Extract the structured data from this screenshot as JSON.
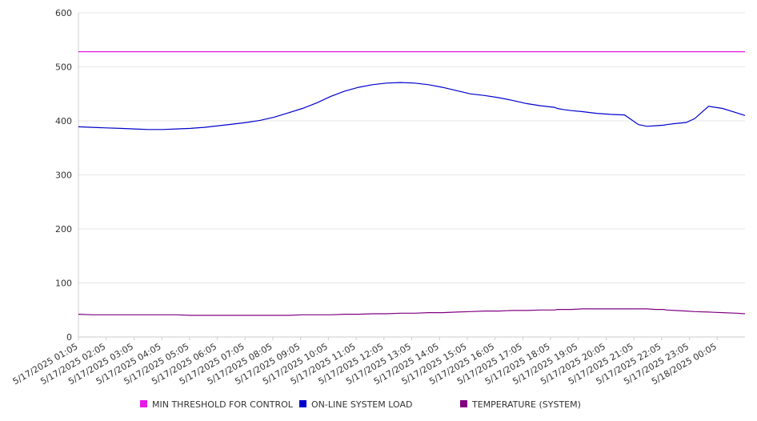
{
  "chart_data": {
    "type": "line",
    "ylim": [
      0,
      600
    ],
    "yticks": [
      0,
      100,
      200,
      300,
      400,
      500,
      600
    ],
    "grid": true,
    "legend_placement": "bottom",
    "x_tick_labels": [
      "5/17/2025 01:05",
      "5/17/2025 02:05",
      "5/17/2025 03:05",
      "5/17/2025 04:05",
      "5/17/2025 05:05",
      "5/17/2025 06:05",
      "5/17/2025 07:05",
      "5/17/2025 08:05",
      "5/17/2025 09:05",
      "5/17/2025 10:05",
      "5/17/2025 11:05",
      "5/17/2025 12:05",
      "5/17/2025 13:05",
      "5/17/2025 14:05",
      "5/17/2025 15:05",
      "5/17/2025 16:05",
      "5/17/2025 17:05",
      "5/17/2025 18:05",
      "5/17/2025 19:05",
      "5/17/2025 20:05",
      "5/17/2025 21:05",
      "5/17/2025 22:05",
      "5/17/2025 23:05",
      "5/18/2025 00:05"
    ],
    "x_hours": [
      0,
      0.5,
      1,
      1.5,
      2,
      2.5,
      3,
      3.5,
      4,
      4.5,
      5,
      5.5,
      6,
      6.5,
      7,
      7.5,
      8,
      8.5,
      9,
      9.5,
      10,
      10.5,
      11,
      11.5,
      12,
      12.5,
      13,
      13.5,
      14,
      14.5,
      15,
      15.5,
      16,
      16.5,
      17,
      17.1,
      17.3,
      17.6,
      18,
      18.5,
      19,
      19.5,
      20,
      20.3,
      20.6,
      20.9,
      21,
      21.3,
      21.7,
      22,
      22.5,
      23,
      23.5,
      23.8
    ],
    "series": [
      {
        "name": "MIN THRESHOLD FOR CONTROL",
        "color": "#e619e6",
        "values": [
          528,
          528,
          528,
          528,
          528,
          528,
          528,
          528,
          528,
          528,
          528,
          528,
          528,
          528,
          528,
          528,
          528,
          528,
          528,
          528,
          528,
          528,
          528,
          528,
          528,
          528,
          528,
          528,
          528,
          528,
          528,
          528,
          528,
          528,
          528,
          528,
          528,
          528,
          528,
          528,
          528,
          528,
          528,
          528,
          528,
          528,
          528,
          528,
          528,
          528,
          528,
          528,
          528,
          528
        ]
      },
      {
        "name": "ON-LINE SYSTEM LOAD",
        "color": "#0000cc",
        "values": [
          389,
          388,
          387,
          386,
          385,
          384,
          384,
          385,
          386,
          388,
          391,
          394,
          397,
          401,
          407,
          415,
          423,
          433,
          445,
          455,
          462,
          467,
          470,
          471,
          470,
          467,
          462,
          456,
          450,
          447,
          443,
          438,
          432,
          428,
          425,
          423,
          421,
          419,
          417,
          414,
          412,
          411,
          393,
          390,
          391,
          392,
          393,
          395,
          397,
          404,
          427,
          423,
          415,
          410
        ]
      },
      {
        "name": "TEMPERATURE (SYSTEM)",
        "color": "#800080",
        "values": [
          42,
          41,
          41,
          41,
          41,
          41,
          41,
          41,
          40,
          40,
          40,
          40,
          40,
          40,
          40,
          40,
          41,
          41,
          41,
          42,
          42,
          43,
          43,
          44,
          44,
          45,
          45,
          46,
          47,
          48,
          48,
          49,
          49,
          50,
          50,
          51,
          51,
          51,
          52,
          52,
          52,
          52,
          52,
          52,
          51,
          51,
          50,
          49,
          48,
          47,
          46,
          45,
          44,
          43
        ]
      }
    ]
  }
}
